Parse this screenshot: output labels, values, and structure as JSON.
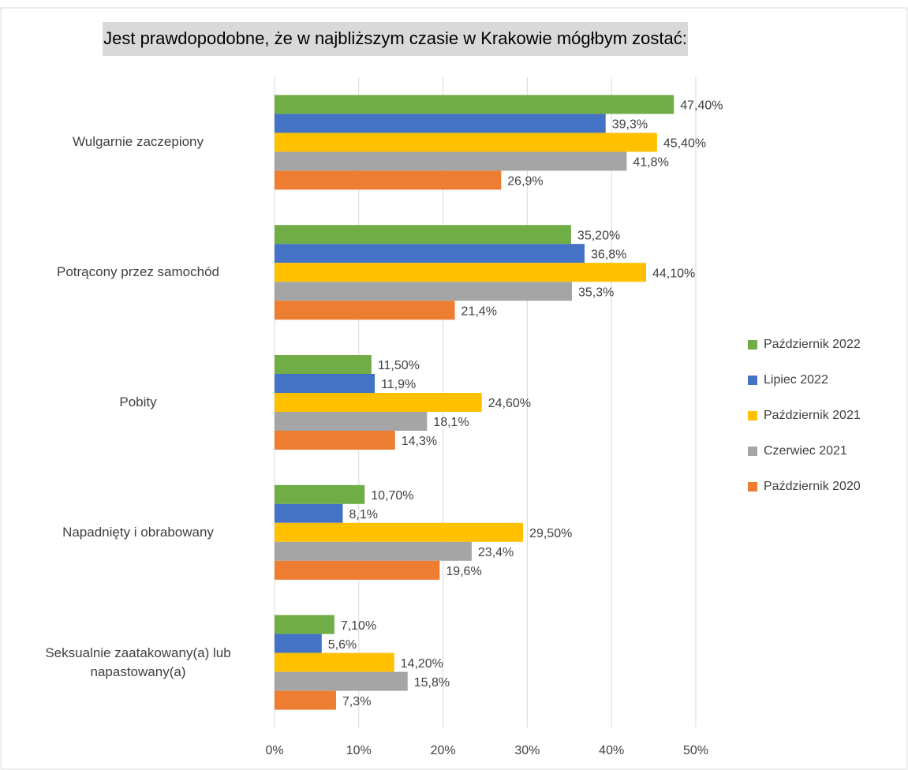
{
  "chart_data": {
    "type": "bar",
    "orientation": "horizontal",
    "title": "Jest prawdopodobne, że w najbliższym czasie w Krakowie mógłbym zostać:",
    "categories": [
      "Wulgarnie zaczepiony",
      "Potrącony przez samochód",
      "Pobity",
      "Napadnięty i obrabowany",
      "Seksualnie zaatakowany(a) lub napastowany(a)"
    ],
    "series": [
      {
        "name": "Październik 2022",
        "color": "#70ad47",
        "values": [
          47.4,
          35.2,
          11.5,
          10.7,
          7.1
        ],
        "value_labels": [
          "47,40%",
          "35,20%",
          "11,50%",
          "10,70%",
          "7,10%"
        ]
      },
      {
        "name": "Lipiec 2022",
        "color": "#4472c4",
        "values": [
          39.3,
          36.8,
          11.9,
          8.1,
          5.6
        ],
        "value_labels": [
          "39,3%",
          "36,8%",
          "11,9%",
          "8,1%",
          "5,6%"
        ]
      },
      {
        "name": "Październik 2021",
        "color": "#ffc000",
        "values": [
          45.4,
          44.1,
          24.6,
          29.5,
          14.2
        ],
        "value_labels": [
          "45,40%",
          "44,10%",
          "24,60%",
          "29,50%",
          "14,20%"
        ]
      },
      {
        "name": "Czerwiec 2021",
        "color": "#a5a5a5",
        "values": [
          41.8,
          35.3,
          18.1,
          23.4,
          15.8
        ],
        "value_labels": [
          "41,8%",
          "35,3%",
          "18,1%",
          "23,4%",
          "15,8%"
        ]
      },
      {
        "name": "Październik 2020",
        "color": "#ed7d31",
        "values": [
          26.9,
          21.4,
          14.3,
          19.6,
          7.3
        ],
        "value_labels": [
          "26,9%",
          "21,4%",
          "14,3%",
          "19,6%",
          "7,3%"
        ]
      }
    ],
    "xlim": [
      0,
      50
    ],
    "xticks": [
      {
        "value": 0,
        "label": "0%"
      },
      {
        "value": 10,
        "label": "10%"
      },
      {
        "value": 20,
        "label": "20%"
      },
      {
        "value": 30,
        "label": "30%"
      },
      {
        "value": 40,
        "label": "40%"
      },
      {
        "value": 50,
        "label": "50%"
      }
    ],
    "grid": true,
    "legend": "right"
  }
}
